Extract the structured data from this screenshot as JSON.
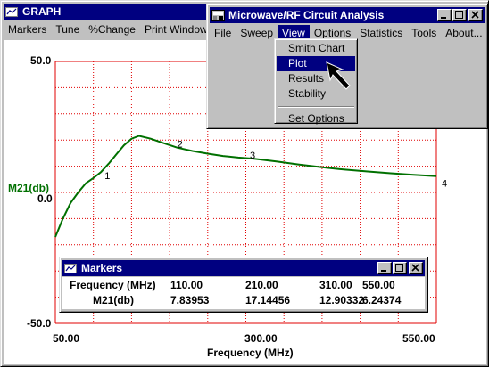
{
  "graph_window": {
    "title": "GRAPH",
    "menu": [
      "Markers",
      "Tune",
      "%Change",
      "Print Window"
    ]
  },
  "mw_window": {
    "title": "Microwave/RF Circuit Analysis",
    "menu": [
      "File",
      "Sweep",
      "View",
      "Options",
      "Statistics",
      "Tools",
      "About..."
    ],
    "active_menu": "View"
  },
  "view_menu": {
    "items": [
      "Smith Chart",
      "Plot",
      "Results",
      "Stability",
      "Set Options"
    ],
    "selected": "Plot"
  },
  "markers_window": {
    "title": "Markers",
    "rows": [
      {
        "label": "Frequency (MHz)",
        "values": [
          "110.00",
          "210.00",
          "310.00",
          "550.00"
        ]
      },
      {
        "label": "M21(db)",
        "values": [
          "7.83953",
          "17.14456",
          "12.90332",
          "6.24374"
        ]
      }
    ]
  },
  "chart_data": {
    "type": "line",
    "xlabel": "Frequency (MHz)",
    "ylabel": "M21(db)",
    "xlim": [
      50,
      550
    ],
    "ylim": [
      -50,
      50
    ],
    "x_ticks": [
      "50.00",
      "300.00",
      "550.00"
    ],
    "y_ticks": [
      "50.0",
      "0.0",
      "-50.0"
    ],
    "grid": true,
    "series": [
      {
        "name": "M21(db)",
        "color": "#007000",
        "x": [
          50,
          60,
          70,
          80,
          90,
          100,
          110,
          120,
          130,
          140,
          150,
          160,
          175,
          190,
          210,
          230,
          250,
          270,
          290,
          310,
          340,
          370,
          400,
          430,
          460,
          490,
          520,
          550
        ],
        "y": [
          -17,
          -10,
          -4,
          0,
          3.5,
          5.5,
          7.8,
          11,
          14.5,
          18,
          20.5,
          21.6,
          20.5,
          19,
          17.1,
          15.8,
          14.8,
          13.9,
          13.3,
          12.9,
          11.8,
          10.6,
          9.6,
          8.7,
          8.0,
          7.3,
          6.7,
          6.2
        ]
      }
    ],
    "markers": [
      {
        "label": "1",
        "x": 110,
        "y": 7.83953
      },
      {
        "label": "2",
        "x": 210,
        "y": 17.14456
      },
      {
        "label": "3",
        "x": 310,
        "y": 12.90332
      },
      {
        "label": "4",
        "x": 550,
        "y": 6.24374
      }
    ]
  }
}
